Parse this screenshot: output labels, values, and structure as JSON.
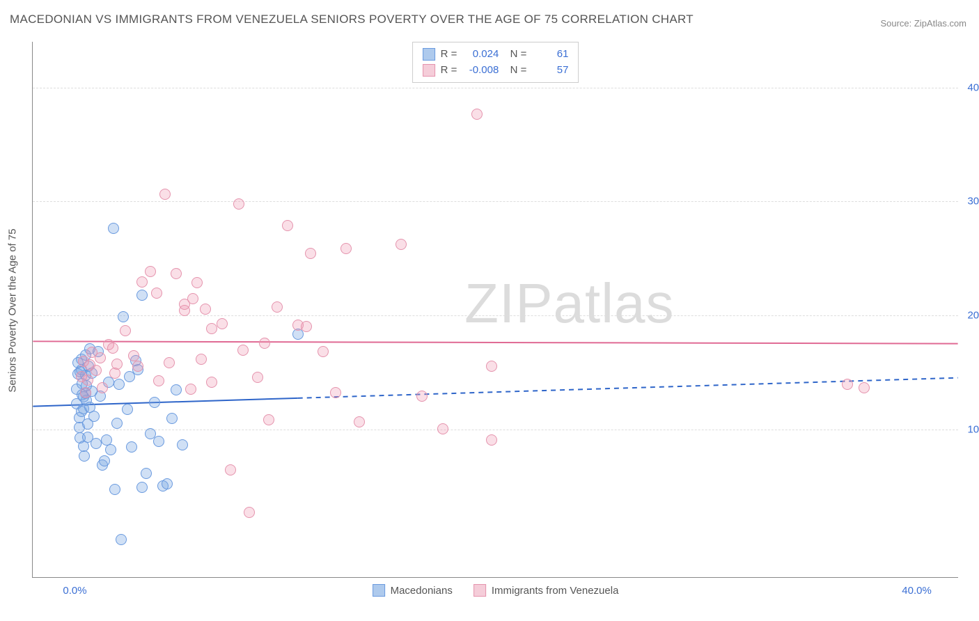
{
  "title": "MACEDONIAN VS IMMIGRANTS FROM VENEZUELA SENIORS POVERTY OVER THE AGE OF 75 CORRELATION CHART",
  "source": "Source: ZipAtlas.com",
  "yaxis_label": "Seniors Poverty Over the Age of 75",
  "watermark": "ZIPatlas",
  "chart": {
    "type": "scatter",
    "xlim": [
      -2,
      42
    ],
    "ylim": [
      -3,
      44
    ],
    "background_color": "#ffffff",
    "grid_color": "#dddddd",
    "border_color": "#888888",
    "tick_color": "#3b6fd4",
    "gridlines_y": [
      10,
      20,
      30,
      40
    ],
    "yticks": [
      "10.0%",
      "20.0%",
      "30.0%",
      "40.0%"
    ],
    "xticks": [
      {
        "x": 0,
        "label": "0.0%"
      },
      {
        "x": 40,
        "label": "40.0%"
      }
    ],
    "marker_radius": 8,
    "marker_opacity_fill": 0.35,
    "marker_stroke_width": 1.5
  },
  "series": [
    {
      "name": "Macedonians",
      "color_fill": "rgba(120,165,225,0.35)",
      "color_stroke": "#6a9adf",
      "swatch_fill": "#aecaed",
      "swatch_border": "#6a9adf",
      "R": "0.024",
      "N": "61",
      "trend": {
        "y_at_xmin": 12.0,
        "y_at_xmax": 14.5,
        "solid_until_x": 10.6,
        "stroke": "#2e65c9",
        "stroke_width": 2
      },
      "points": [
        [
          0.1,
          12.2
        ],
        [
          0.1,
          13.5
        ],
        [
          0.15,
          14.8
        ],
        [
          0.2,
          11.0
        ],
        [
          0.2,
          10.1
        ],
        [
          0.25,
          9.2
        ],
        [
          0.3,
          15.2
        ],
        [
          0.3,
          16.1
        ],
        [
          0.35,
          13.0
        ],
        [
          0.4,
          11.8
        ],
        [
          0.4,
          8.5
        ],
        [
          0.45,
          7.6
        ],
        [
          0.5,
          14.7
        ],
        [
          0.5,
          16.5
        ],
        [
          0.55,
          12.5
        ],
        [
          0.6,
          10.4
        ],
        [
          0.6,
          9.3
        ],
        [
          0.65,
          15.5
        ],
        [
          0.7,
          17.0
        ],
        [
          0.8,
          13.3
        ],
        [
          0.9,
          11.1
        ],
        [
          1.0,
          8.7
        ],
        [
          1.1,
          16.8
        ],
        [
          1.2,
          12.9
        ],
        [
          1.3,
          6.8
        ],
        [
          1.4,
          7.2
        ],
        [
          1.5,
          9.0
        ],
        [
          1.6,
          14.1
        ],
        [
          1.7,
          8.2
        ],
        [
          1.85,
          27.6
        ],
        [
          2.0,
          10.5
        ],
        [
          2.1,
          13.9
        ],
        [
          2.3,
          19.8
        ],
        [
          2.5,
          11.7
        ],
        [
          2.7,
          8.4
        ],
        [
          2.9,
          16.0
        ],
        [
          3.0,
          15.2
        ],
        [
          3.2,
          21.7
        ],
        [
          3.4,
          6.1
        ],
        [
          3.6,
          9.6
        ],
        [
          3.8,
          12.3
        ],
        [
          4.0,
          8.9
        ],
        [
          4.2,
          5.0
        ],
        [
          4.4,
          5.2
        ],
        [
          4.6,
          10.9
        ],
        [
          4.8,
          13.4
        ],
        [
          5.1,
          8.6
        ],
        [
          2.2,
          0.3
        ],
        [
          3.2,
          4.9
        ],
        [
          1.9,
          4.7
        ],
        [
          2.6,
          14.6
        ],
        [
          0.15,
          15.8
        ],
        [
          0.25,
          15.0
        ],
        [
          0.35,
          14.0
        ],
        [
          0.5,
          13.1
        ],
        [
          0.7,
          11.9
        ],
        [
          0.4,
          12.8
        ],
        [
          0.55,
          13.8
        ],
        [
          0.3,
          11.5
        ],
        [
          0.8,
          14.9
        ],
        [
          10.6,
          18.3
        ]
      ]
    },
    {
      "name": "Immigrants from Venezuela",
      "color_fill": "rgba(240,150,175,0.3)",
      "color_stroke": "#e593ad",
      "swatch_fill": "#f5cdd9",
      "swatch_border": "#e593ad",
      "R": "-0.008",
      "N": "57",
      "trend": {
        "y_at_xmin": 17.7,
        "y_at_xmax": 17.5,
        "solid_until_x": 42,
        "stroke": "#e06a94",
        "stroke_width": 2
      },
      "points": [
        [
          0.4,
          15.9
        ],
        [
          0.6,
          14.3
        ],
        [
          0.8,
          16.7
        ],
        [
          1.0,
          15.1
        ],
        [
          1.3,
          13.6
        ],
        [
          1.6,
          17.4
        ],
        [
          1.9,
          14.9
        ],
        [
          2.4,
          18.6
        ],
        [
          2.8,
          16.4
        ],
        [
          3.2,
          22.9
        ],
        [
          3.6,
          23.8
        ],
        [
          3.9,
          21.9
        ],
        [
          4.3,
          30.6
        ],
        [
          4.8,
          23.6
        ],
        [
          5.2,
          20.4
        ],
        [
          5.2,
          20.9
        ],
        [
          5.6,
          21.4
        ],
        [
          5.8,
          22.8
        ],
        [
          6.2,
          20.5
        ],
        [
          6.5,
          18.8
        ],
        [
          6.5,
          14.1
        ],
        [
          7.0,
          19.2
        ],
        [
          7.4,
          6.4
        ],
        [
          7.8,
          29.7
        ],
        [
          8.3,
          2.7
        ],
        [
          8.7,
          14.5
        ],
        [
          9.2,
          10.8
        ],
        [
          9.6,
          20.7
        ],
        [
          10.1,
          27.8
        ],
        [
          10.6,
          19.1
        ],
        [
          11.2,
          25.4
        ],
        [
          11.8,
          16.8
        ],
        [
          12.4,
          13.2
        ],
        [
          12.9,
          25.8
        ],
        [
          13.5,
          10.6
        ],
        [
          15.5,
          26.2
        ],
        [
          16.5,
          12.9
        ],
        [
          17.5,
          10.0
        ],
        [
          19.1,
          37.6
        ],
        [
          19.8,
          9.0
        ],
        [
          19.8,
          15.5
        ],
        [
          36.7,
          13.9
        ],
        [
          37.5,
          13.6
        ],
        [
          3.0,
          15.5
        ],
        [
          4.5,
          15.8
        ],
        [
          5.5,
          13.5
        ],
        [
          0.3,
          14.6
        ],
        [
          0.5,
          13.2
        ],
        [
          0.7,
          15.6
        ],
        [
          4.0,
          14.2
        ],
        [
          6.0,
          16.1
        ],
        [
          8.0,
          16.9
        ],
        [
          2.0,
          15.7
        ],
        [
          11.0,
          19.0
        ],
        [
          9.0,
          17.5
        ],
        [
          1.2,
          16.2
        ],
        [
          1.8,
          17.1
        ]
      ]
    }
  ],
  "bottom_legend": [
    {
      "label": "Macedonians",
      "series": 0
    },
    {
      "label": "Immigrants from Venezuela",
      "series": 1
    }
  ]
}
